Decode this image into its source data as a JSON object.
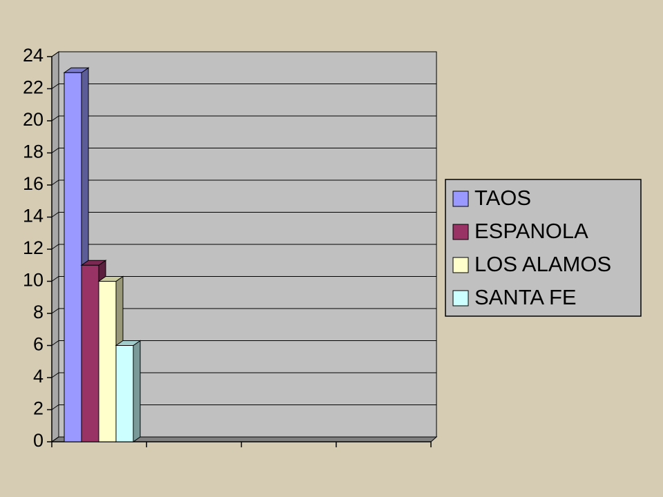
{
  "chart_data": {
    "type": "bar3d",
    "categories": [
      null,
      null,
      null,
      null
    ],
    "series": [
      {
        "name": "TAOS",
        "color": "#9999ff",
        "values": [
          23,
          null,
          null,
          null
        ]
      },
      {
        "name": "ESPANOLA",
        "color": "#993366",
        "values": [
          11,
          null,
          null,
          null
        ]
      },
      {
        "name": "LOS ALAMOS",
        "color": "#ffffcc",
        "values": [
          10,
          null,
          null,
          null
        ]
      },
      {
        "name": "SANTA FE",
        "color": "#ccffff",
        "values": [
          6,
          null,
          null,
          null
        ]
      }
    ],
    "ylim": [
      0,
      24
    ],
    "yticks": [
      0,
      2,
      4,
      6,
      8,
      10,
      12,
      14,
      16,
      18,
      20,
      22,
      24
    ],
    "grid": true,
    "legend": "right"
  }
}
